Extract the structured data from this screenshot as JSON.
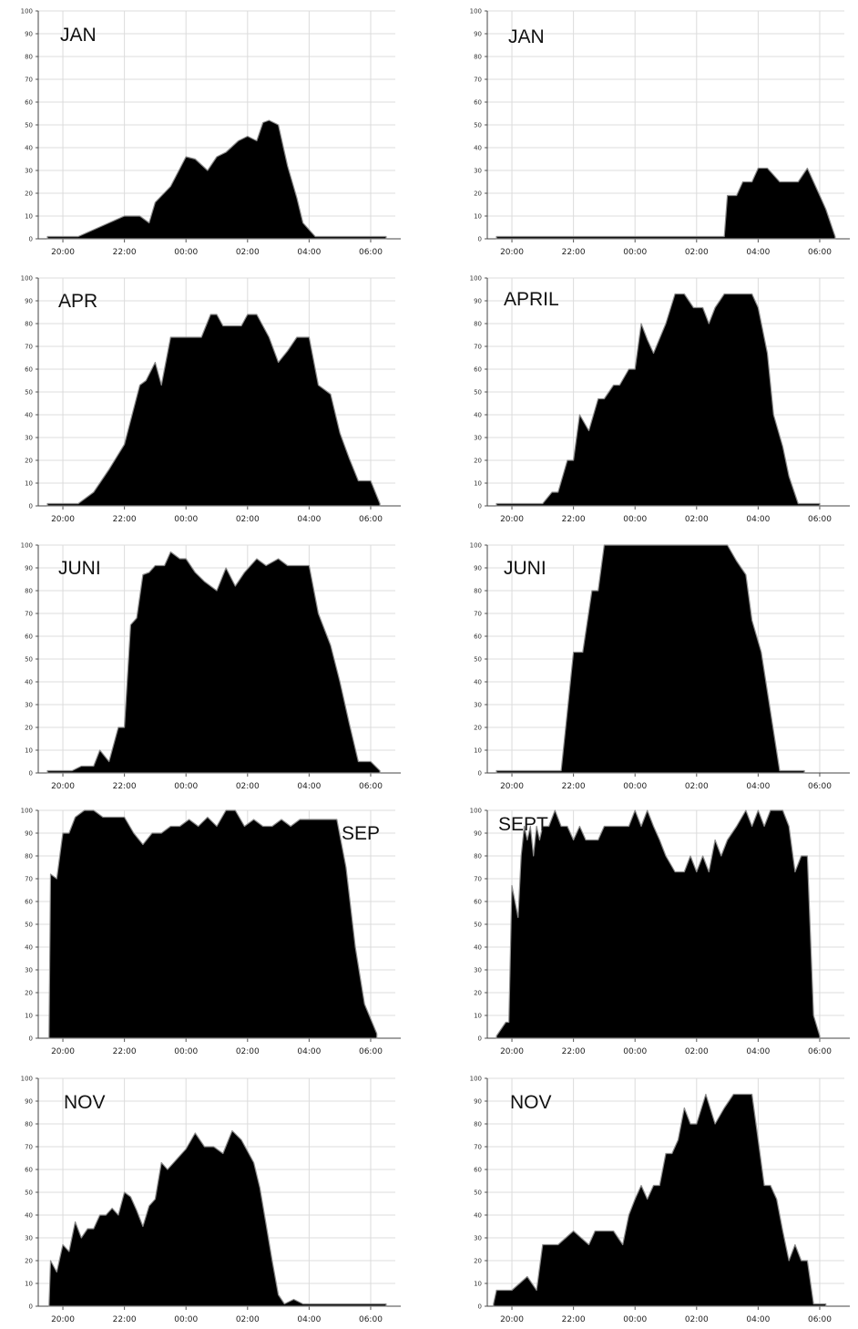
{
  "chart_data": [
    {
      "type": "area",
      "title": "JAN",
      "xlabel": "",
      "ylabel": "",
      "ylim": [
        0,
        100
      ],
      "grid": true,
      "xticks": [
        "20:00",
        "22:00",
        "00:00",
        "02:00",
        "04:00",
        "06:00"
      ],
      "yticks": [
        "0",
        "10",
        "20",
        "30",
        "40",
        "50",
        "60",
        "70",
        "80",
        "90",
        "100"
      ],
      "x": [
        19.5,
        20.5,
        21.0,
        21.5,
        22.0,
        22.5,
        22.8,
        23.0,
        23.5,
        24.0,
        24.3,
        24.7,
        25.0,
        25.3,
        25.7,
        26.0,
        26.3,
        26.5,
        26.7,
        27.0,
        27.3,
        27.6,
        27.8,
        28.2,
        28.5,
        29.0,
        30.5
      ],
      "series": [
        {
          "values": [
            1,
            1,
            4,
            7,
            10,
            10,
            7,
            16,
            23,
            36,
            35,
            30,
            36,
            38,
            43,
            45,
            43,
            51,
            52,
            50,
            32,
            18,
            7,
            1,
            1,
            1,
            1
          ]
        }
      ]
    },
    {
      "type": "area",
      "title": "JAN",
      "xlabel": "",
      "ylabel": "",
      "ylim": [
        0,
        100
      ],
      "grid": true,
      "xticks": [
        "20:00",
        "22:00",
        "00:00",
        "02:00",
        "04:00",
        "06:00"
      ],
      "yticks": [
        "0",
        "10",
        "20",
        "30",
        "40",
        "50",
        "60",
        "70",
        "80",
        "90",
        "100"
      ],
      "x": [
        19.5,
        26.9,
        27.0,
        27.3,
        27.5,
        27.8,
        28.0,
        28.3,
        28.7,
        29.0,
        29.3,
        29.6,
        30.0,
        30.2,
        30.5
      ],
      "series": [
        {
          "values": [
            1,
            1,
            19,
            19,
            25,
            25,
            31,
            31,
            25,
            25,
            25,
            31,
            19,
            13,
            1
          ]
        }
      ]
    },
    {
      "type": "area",
      "title": "APR",
      "xlabel": "",
      "ylabel": "",
      "ylim": [
        0,
        100
      ],
      "grid": true,
      "xticks": [
        "20:00",
        "22:00",
        "00:00",
        "02:00",
        "04:00",
        "06:00"
      ],
      "yticks": [
        "0",
        "10",
        "20",
        "30",
        "40",
        "50",
        "60",
        "70",
        "80",
        "90",
        "100"
      ],
      "x": [
        19.5,
        20.5,
        21.0,
        21.5,
        22.0,
        22.5,
        22.7,
        23.0,
        23.2,
        23.5,
        23.7,
        24.0,
        24.5,
        24.8,
        25.0,
        25.2,
        25.5,
        25.8,
        26.0,
        26.3,
        26.7,
        27.0,
        27.3,
        27.6,
        28.0,
        28.3,
        28.7,
        29.0,
        29.3,
        29.6,
        30.0,
        30.3
      ],
      "series": [
        {
          "values": [
            1,
            1,
            6,
            16,
            27,
            53,
            55,
            63,
            53,
            74,
            74,
            74,
            74,
            84,
            84,
            79,
            79,
            79,
            84,
            84,
            74,
            63,
            68,
            74,
            74,
            53,
            49,
            32,
            21,
            11,
            11,
            1
          ]
        }
      ]
    },
    {
      "type": "area",
      "title": "APRIL",
      "xlabel": "",
      "ylabel": "",
      "ylim": [
        0,
        100
      ],
      "grid": true,
      "xticks": [
        "20:00",
        "22:00",
        "00:00",
        "02:00",
        "04:00",
        "06:00"
      ],
      "yticks": [
        "0",
        "10",
        "20",
        "30",
        "40",
        "50",
        "60",
        "70",
        "80",
        "90",
        "100"
      ],
      "x": [
        19.5,
        20.5,
        21.0,
        21.3,
        21.5,
        21.8,
        22.0,
        22.2,
        22.5,
        22.8,
        23.0,
        23.3,
        23.5,
        23.8,
        24.0,
        24.2,
        24.4,
        24.6,
        25.0,
        25.3,
        25.6,
        25.9,
        26.2,
        26.4,
        26.6,
        26.9,
        27.2,
        27.5,
        27.8,
        28.0,
        28.3,
        28.5,
        28.8,
        29.0,
        29.3,
        29.6,
        30.0
      ],
      "series": [
        {
          "values": [
            1,
            1,
            1,
            6,
            6,
            20,
            20,
            40,
            33,
            47,
            47,
            53,
            53,
            60,
            60,
            80,
            73,
            67,
            80,
            93,
            93,
            87,
            87,
            80,
            87,
            93,
            93,
            93,
            93,
            87,
            67,
            40,
            26,
            13,
            1,
            1,
            1
          ]
        }
      ]
    },
    {
      "type": "area",
      "title": "JUNI",
      "xlabel": "",
      "ylabel": "",
      "ylim": [
        0,
        100
      ],
      "grid": true,
      "xticks": [
        "20:00",
        "22:00",
        "00:00",
        "02:00",
        "04:00",
        "06:00"
      ],
      "yticks": [
        "0",
        "10",
        "20",
        "30",
        "40",
        "50",
        "60",
        "70",
        "80",
        "90",
        "100"
      ],
      "x": [
        19.5,
        20.3,
        20.6,
        21.0,
        21.2,
        21.5,
        21.8,
        22.0,
        22.2,
        22.4,
        22.6,
        22.8,
        23.0,
        23.3,
        23.5,
        23.8,
        24.0,
        24.3,
        24.6,
        25.0,
        25.3,
        25.6,
        25.9,
        26.3,
        26.6,
        27.0,
        27.3,
        27.6,
        28.0,
        28.3,
        28.7,
        29.0,
        29.3,
        29.6,
        30.0,
        30.3
      ],
      "series": [
        {
          "values": [
            1,
            1,
            3,
            3,
            10,
            5,
            20,
            20,
            65,
            68,
            87,
            88,
            91,
            91,
            97,
            94,
            94,
            88,
            84,
            80,
            90,
            82,
            88,
            94,
            91,
            94,
            91,
            91,
            91,
            70,
            56,
            40,
            22,
            5,
            5,
            1
          ]
        }
      ]
    },
    {
      "type": "area",
      "title": "JUNI",
      "xlabel": "",
      "ylabel": "",
      "ylim": [
        0,
        100
      ],
      "grid": true,
      "xticks": [
        "20:00",
        "22:00",
        "00:00",
        "02:00",
        "04:00",
        "06:00"
      ],
      "yticks": [
        "0",
        "10",
        "20",
        "30",
        "40",
        "50",
        "60",
        "70",
        "80",
        "90",
        "100"
      ],
      "x": [
        19.5,
        21.6,
        21.8,
        22.0,
        22.3,
        22.6,
        22.8,
        23.0,
        23.2,
        24.0,
        25.0,
        26.0,
        27.0,
        27.3,
        27.6,
        27.8,
        28.1,
        28.4,
        28.7,
        29.0,
        29.5
      ],
      "series": [
        {
          "values": [
            1,
            1,
            27,
            53,
            53,
            80,
            80,
            100,
            100,
            100,
            100,
            100,
            100,
            93,
            87,
            67,
            53,
            27,
            1,
            1,
            1
          ]
        }
      ]
    },
    {
      "type": "area",
      "title": "SEP",
      "xlabel": "",
      "ylabel": "",
      "ylim": [
        0,
        100
      ],
      "grid": true,
      "xticks": [
        "20:00",
        "22:00",
        "00:00",
        "02:00",
        "04:00",
        "06:00"
      ],
      "yticks": [
        "0",
        "10",
        "20",
        "30",
        "40",
        "50",
        "60",
        "70",
        "80",
        "90",
        "100"
      ],
      "x": [
        19.55,
        19.6,
        19.8,
        20.0,
        20.2,
        20.4,
        20.7,
        21.0,
        21.3,
        21.6,
        22.0,
        22.3,
        22.6,
        22.9,
        23.2,
        23.5,
        23.8,
        24.1,
        24.4,
        24.7,
        25.0,
        25.3,
        25.6,
        25.9,
        26.2,
        26.5,
        26.8,
        27.1,
        27.4,
        27.7,
        28.0,
        28.3,
        28.6,
        28.9,
        29.2,
        29.5,
        29.8,
        30.2
      ],
      "series": [
        {
          "values": [
            0,
            72,
            70,
            90,
            90,
            97,
            100,
            100,
            97,
            97,
            97,
            90,
            85,
            90,
            90,
            93,
            93,
            96,
            93,
            97,
            93,
            100,
            100,
            93,
            96,
            93,
            93,
            96,
            93,
            96,
            96,
            96,
            96,
            96,
            75,
            40,
            15,
            2
          ]
        }
      ]
    },
    {
      "type": "area",
      "title": "SEPT",
      "xlabel": "",
      "ylabel": "",
      "ylim": [
        0,
        100
      ],
      "grid": true,
      "xticks": [
        "20:00",
        "22:00",
        "00:00",
        "02:00",
        "04:00",
        "06:00"
      ],
      "yticks": [
        "0",
        "10",
        "20",
        "30",
        "40",
        "50",
        "60",
        "70",
        "80",
        "90",
        "100"
      ],
      "x": [
        19.5,
        19.8,
        19.9,
        20.0,
        20.1,
        20.2,
        20.3,
        20.4,
        20.5,
        20.6,
        20.7,
        20.8,
        20.9,
        21.0,
        21.2,
        21.4,
        21.6,
        21.8,
        22.0,
        22.2,
        22.4,
        22.6,
        22.8,
        23.0,
        23.4,
        23.8,
        24.0,
        24.2,
        24.4,
        24.6,
        24.8,
        25.0,
        25.3,
        25.6,
        25.8,
        26.0,
        26.2,
        26.4,
        26.6,
        26.8,
        27.0,
        27.3,
        27.6,
        27.8,
        28.0,
        28.2,
        28.4,
        28.6,
        28.8,
        29.0,
        29.2,
        29.4,
        29.6,
        29.8,
        30.0
      ],
      "series": [
        {
          "values": [
            1,
            7,
            7,
            67,
            60,
            53,
            80,
            93,
            87,
            93,
            80,
            93,
            87,
            93,
            93,
            100,
            93,
            93,
            87,
            93,
            87,
            87,
            87,
            93,
            93,
            93,
            100,
            93,
            100,
            93,
            87,
            80,
            73,
            73,
            80,
            73,
            80,
            73,
            87,
            80,
            87,
            93,
            100,
            93,
            100,
            93,
            100,
            100,
            100,
            93,
            73,
            80,
            80,
            10,
            1
          ]
        }
      ]
    },
    {
      "type": "area",
      "title": "NOV",
      "xlabel": "",
      "ylabel": "",
      "ylim": [
        0,
        100
      ],
      "grid": true,
      "xticks": [
        "20:00",
        "22:00",
        "00:00",
        "02:00",
        "04:00",
        "06:00"
      ],
      "yticks": [
        "0",
        "10",
        "20",
        "30",
        "40",
        "50",
        "60",
        "70",
        "80",
        "90",
        "100"
      ],
      "x": [
        19.55,
        19.6,
        19.8,
        20.0,
        20.2,
        20.4,
        20.6,
        20.8,
        21.0,
        21.2,
        21.4,
        21.6,
        21.8,
        22.0,
        22.2,
        22.4,
        22.6,
        22.8,
        23.0,
        23.2,
        23.4,
        23.6,
        23.8,
        24.0,
        24.3,
        24.6,
        24.9,
        25.2,
        25.5,
        25.8,
        26.0,
        26.2,
        26.4,
        26.6,
        26.8,
        27.0,
        27.2,
        27.5,
        27.8,
        28.0,
        28.2,
        28.4,
        28.6,
        28.8,
        29.0,
        30.5
      ],
      "series": [
        {
          "values": [
            0,
            20,
            15,
            27,
            24,
            37,
            30,
            34,
            34,
            40,
            40,
            43,
            40,
            50,
            48,
            42,
            35,
            44,
            47,
            63,
            60,
            63,
            66,
            69,
            76,
            70,
            70,
            67,
            77,
            73,
            68,
            63,
            52,
            36,
            20,
            5,
            1,
            3,
            1,
            1,
            1,
            1,
            1,
            1,
            1,
            1
          ]
        }
      ]
    },
    {
      "type": "area",
      "title": "NOV",
      "xlabel": "",
      "ylabel": "",
      "ylim": [
        0,
        100
      ],
      "grid": true,
      "xticks": [
        "20:00",
        "22:00",
        "00:00",
        "02:00",
        "04:00",
        "06:00"
      ],
      "yticks": [
        "0",
        "10",
        "20",
        "30",
        "40",
        "50",
        "60",
        "70",
        "80",
        "90",
        "100"
      ],
      "x": [
        19.4,
        19.5,
        20.0,
        20.5,
        20.8,
        21.0,
        21.5,
        22.0,
        22.5,
        22.7,
        23.0,
        23.3,
        23.6,
        23.8,
        24.0,
        24.2,
        24.4,
        24.6,
        24.8,
        25.0,
        25.2,
        25.4,
        25.6,
        25.8,
        26.0,
        26.3,
        26.6,
        26.9,
        27.2,
        27.5,
        27.8,
        28.0,
        28.2,
        28.4,
        28.6,
        28.8,
        29.0,
        29.2,
        29.4,
        29.6,
        29.8,
        30.0,
        30.2
      ],
      "series": [
        {
          "values": [
            1,
            7,
            7,
            13,
            7,
            27,
            27,
            33,
            27,
            33,
            33,
            33,
            27,
            40,
            47,
            53,
            47,
            53,
            53,
            67,
            67,
            73,
            87,
            80,
            80,
            93,
            80,
            87,
            93,
            93,
            93,
            73,
            53,
            53,
            47,
            33,
            20,
            27,
            20,
            20,
            1,
            1,
            1
          ]
        }
      ]
    }
  ]
}
